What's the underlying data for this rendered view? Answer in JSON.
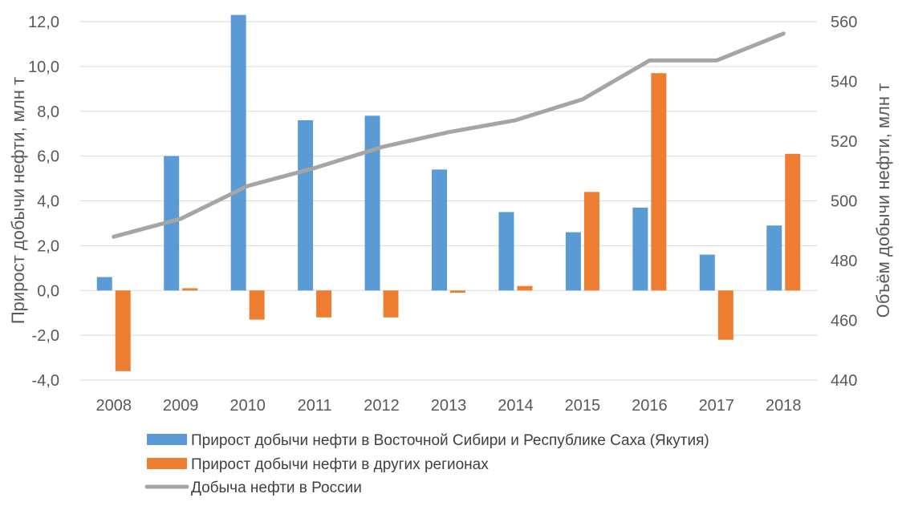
{
  "chart_data": {
    "type": "bar",
    "categories": [
      "2008",
      "2009",
      "2010",
      "2011",
      "2012",
      "2013",
      "2014",
      "2015",
      "2016",
      "2017",
      "2018"
    ],
    "series": [
      {
        "name": "Прирост добычи нефти в Восточной Сибири и Республике Саха (Якутия)",
        "kind": "bar",
        "axis": "left",
        "color": "#5b9bd5",
        "values": [
          0.6,
          6.0,
          12.3,
          7.6,
          7.8,
          5.4,
          3.5,
          2.6,
          3.7,
          1.6,
          2.9
        ]
      },
      {
        "name": "Прирост добычи нефти в других регионах",
        "kind": "bar",
        "axis": "left",
        "color": "#ed7d31",
        "values": [
          -3.6,
          0.1,
          -1.3,
          -1.2,
          -1.2,
          -0.1,
          0.2,
          4.4,
          9.7,
          -2.2,
          6.1
        ]
      },
      {
        "name": "Добыча нефти в России",
        "kind": "line",
        "axis": "right",
        "color": "#a5a5a5",
        "values": [
          488,
          494,
          505,
          511,
          518,
          523,
          527,
          534,
          547,
          547,
          556
        ]
      }
    ],
    "ylabel": "Прирост добычи нефти, млн т",
    "y2label": "Объём добычи нефти, млн т",
    "ylim": [
      -4,
      12
    ],
    "y2lim": [
      440,
      560
    ],
    "yticks": [
      "-4,0",
      "-2,0",
      "0,0",
      "2,0",
      "4,0",
      "6,0",
      "8,0",
      "10,0",
      "12,0"
    ],
    "y2ticks": [
      "440",
      "460",
      "480",
      "500",
      "520",
      "540",
      "560"
    ],
    "grid": true,
    "legend_position": "bottom"
  }
}
